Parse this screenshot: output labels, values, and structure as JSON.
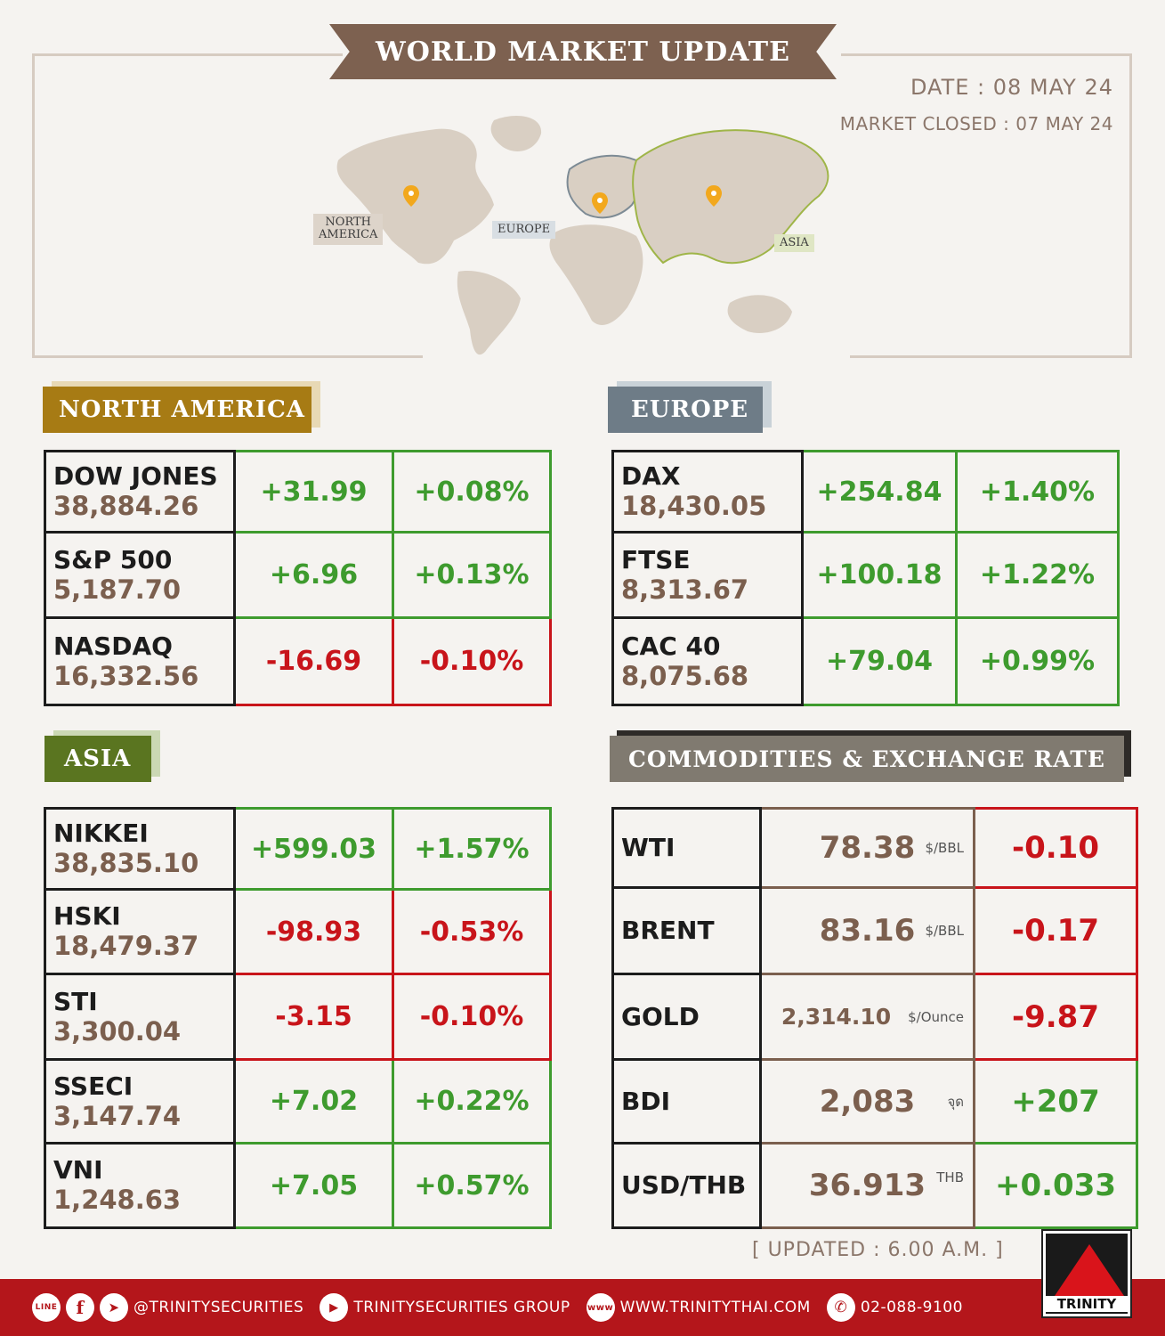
{
  "header": {
    "title": "WORLD MARKET UPDATE",
    "date": "DATE : 08 MAY 24",
    "market_closed": "MARKET CLOSED : 07 MAY 24"
  },
  "map": {
    "labels": {
      "north_america": "NORTH\nAMERICA",
      "europe": "EUROPE",
      "asia": "ASIA"
    },
    "colors": {
      "land": "#d9cfc3",
      "europe_outline": "#7d8b95",
      "asia_outline": "#9fb548",
      "pin": "#f2a81d"
    }
  },
  "north_america": {
    "title": "NORTH AMERICA",
    "color": "#a77b14",
    "rows": [
      {
        "name": "DOW JONES",
        "value": "38,884.26",
        "change": "+31.99",
        "pct": "+0.08%",
        "dir": "up"
      },
      {
        "name": "S&P 500",
        "value": "5,187.70",
        "change": "+6.96",
        "pct": "+0.13%",
        "dir": "up"
      },
      {
        "name": "NASDAQ",
        "value": "16,332.56",
        "change": "-16.69",
        "pct": "-0.10%",
        "dir": "down"
      }
    ]
  },
  "europe": {
    "title": "EUROPE",
    "color": "#6e7c87",
    "rows": [
      {
        "name": "DAX",
        "value": "18,430.05",
        "change": "+254.84",
        "pct": "+1.40%",
        "dir": "up"
      },
      {
        "name": "FTSE",
        "value": "8,313.67",
        "change": "+100.18",
        "pct": "+1.22%",
        "dir": "up"
      },
      {
        "name": "CAC 40",
        "value": "8,075.68",
        "change": "+79.04",
        "pct": "+0.99%",
        "dir": "up"
      }
    ]
  },
  "asia": {
    "title": "ASIA",
    "color": "#5a7520",
    "rows": [
      {
        "name": "NIKKEI",
        "value": "38,835.10",
        "change": "+599.03",
        "pct": "+1.57%",
        "dir": "up"
      },
      {
        "name": "HSKI",
        "value": "18,479.37",
        "change": "-98.93",
        "pct": "-0.53%",
        "dir": "down"
      },
      {
        "name": "STI",
        "value": "3,300.04",
        "change": "-3.15",
        "pct": "-0.10%",
        "dir": "down"
      },
      {
        "name": "SSECI",
        "value": "3,147.74",
        "change": "+7.02",
        "pct": "+0.22%",
        "dir": "up"
      },
      {
        "name": "VNI",
        "value": "1,248.63",
        "change": "+7.05",
        "pct": "+0.57%",
        "dir": "up"
      }
    ]
  },
  "commodities": {
    "title": "COMMODITIES & EXCHANGE RATE",
    "color": "#807a70",
    "rows": [
      {
        "name": "WTI",
        "value": "78.38",
        "unit": "$/BBL",
        "change": "-0.10",
        "dir": "down"
      },
      {
        "name": "BRENT",
        "value": "83.16",
        "unit": "$/BBL",
        "change": "-0.17",
        "dir": "down"
      },
      {
        "name": "GOLD",
        "value": "2,314.10",
        "unit": "$/Ounce",
        "change": "-9.87",
        "dir": "down"
      },
      {
        "name": "BDI",
        "value": "2,083",
        "unit": "จุด",
        "change": "+207",
        "dir": "up"
      },
      {
        "name": "USD/THB",
        "value": "36.913",
        "unit": "THB",
        "change": "+0.033",
        "dir": "up"
      }
    ]
  },
  "updated": "[ UPDATED : 6.00 A.M. ]",
  "footer": {
    "line_icon": "LINE",
    "social_handle": "@TRINITYSECURITIES",
    "youtube": "TRINITYSECURITIES GROUP",
    "www_icon": "www",
    "website": "WWW.TRINITYTHAI.COM",
    "phone": "02-088-9100"
  },
  "logo": {
    "text": "TRINITY"
  }
}
